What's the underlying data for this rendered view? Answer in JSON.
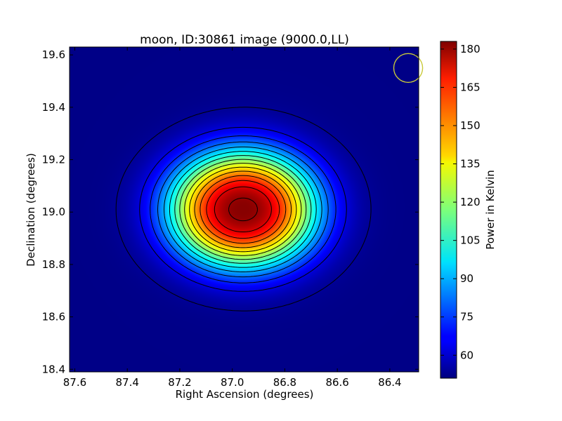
{
  "chart_data": {
    "type": "heatmap",
    "title": "moon, ID:30861 image (9000.0,LL)",
    "xlabel": "Right Ascension (degrees)",
    "ylabel": "Declination (degrees)",
    "colorbar_label": "Power in Kelvin",
    "xlim": [
      87.62,
      86.29
    ],
    "ylim": [
      18.39,
      19.63
    ],
    "x_ticks": [
      87.6,
      87.4,
      87.2,
      87.0,
      86.8,
      86.6,
      86.4
    ],
    "x_tick_labels": [
      "87.6",
      "87.4",
      "87.2",
      "87.0",
      "86.8",
      "86.6",
      "86.4"
    ],
    "y_ticks": [
      18.4,
      18.6,
      18.8,
      19.0,
      19.2,
      19.4,
      19.6
    ],
    "y_tick_labels": [
      "18.4",
      "18.6",
      "18.8",
      "19.0",
      "19.2",
      "19.4",
      "19.6"
    ],
    "colorbar_range": [
      51,
      183
    ],
    "colorbar_ticks": [
      60,
      75,
      90,
      105,
      120,
      135,
      150,
      165,
      180
    ],
    "colorbar_tick_labels": [
      "60",
      "75",
      "90",
      "105",
      "120",
      "135",
      "150",
      "165",
      "180"
    ],
    "colormap": "jet",
    "source_peak": {
      "ra": 86.96,
      "dec": 19.01,
      "value": 182
    },
    "background_level": 52,
    "contour_levels": [
      54,
      63,
      72,
      81,
      90,
      99,
      108,
      117,
      126,
      135,
      144,
      153,
      162,
      171,
      180
    ],
    "beam_marker": {
      "ra": 86.33,
      "dec": 19.55,
      "radius_deg": 0.055,
      "color": "#c8c83a"
    },
    "grid": false
  }
}
